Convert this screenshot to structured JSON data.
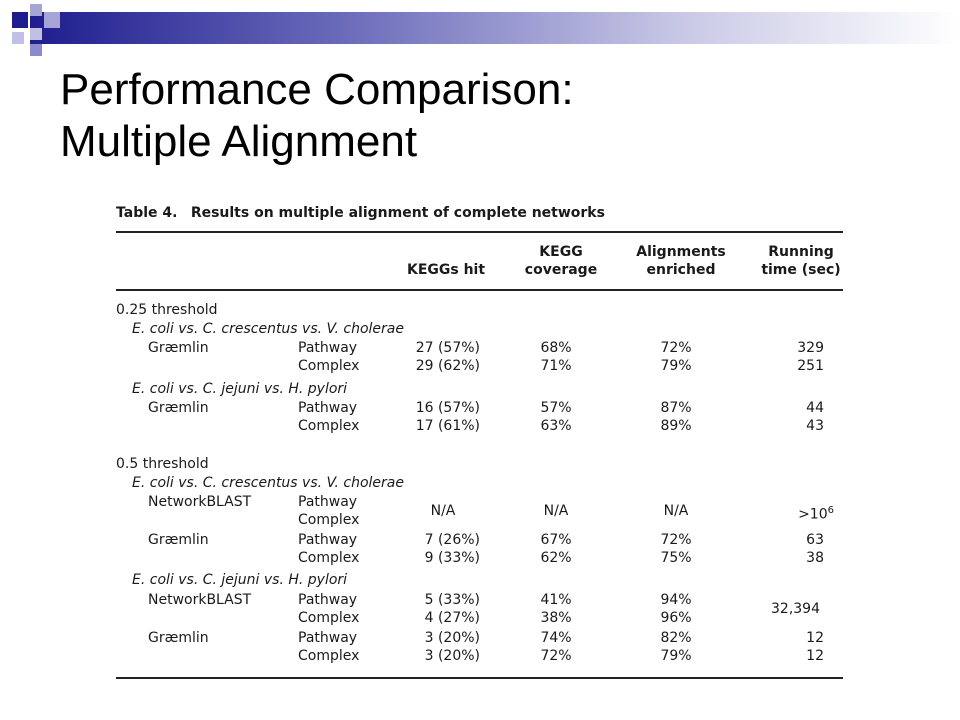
{
  "slide": {
    "title_line1": "Performance Comparison:",
    "title_line2": "Multiple Alignment"
  },
  "table": {
    "caption_label": "Table 4.",
    "caption_text": "Results on multiple alignment of complete networks",
    "headers": {
      "keggs_hit": "KEGGs hit",
      "kegg_coverage_1": "KEGG",
      "kegg_coverage_2": "coverage",
      "alignments_1": "Alignments",
      "alignments_2": "enriched",
      "running_1": "Running",
      "running_2": "time (sec)"
    },
    "sections": [
      {
        "threshold": "0.25 threshold",
        "comparisons": [
          {
            "species": "E. coli vs. C. crescentus vs. V. cholerae",
            "methods": [
              {
                "method": "Græmlin",
                "rows": [
                  {
                    "type": "Pathway",
                    "keggs_hit": "27 (57%)",
                    "coverage": "68%",
                    "enriched": "72%",
                    "time": "329"
                  },
                  {
                    "type": "Complex",
                    "keggs_hit": "29 (62%)",
                    "coverage": "71%",
                    "enriched": "79%",
                    "time": "251"
                  }
                ]
              }
            ]
          },
          {
            "species": "E. coli vs. C. jejuni vs. H. pylori",
            "methods": [
              {
                "method": "Græmlin",
                "rows": [
                  {
                    "type": "Pathway",
                    "keggs_hit": "16 (57%)",
                    "coverage": "57%",
                    "enriched": "87%",
                    "time": "44"
                  },
                  {
                    "type": "Complex",
                    "keggs_hit": "17 (61%)",
                    "coverage": "63%",
                    "enriched": "89%",
                    "time": "43"
                  }
                ]
              }
            ]
          }
        ]
      },
      {
        "threshold": "0.5 threshold",
        "comparisons": [
          {
            "species": "E. coli vs. C. crescentus vs. V. cholerae",
            "methods": [
              {
                "method": "NetworkBLAST",
                "types": [
                  "Pathway",
                  "Complex"
                ],
                "keggs_hit": "N/A",
                "coverage": "N/A",
                "enriched": "N/A",
                "time_base": ">10",
                "time_exp": "6"
              },
              {
                "method": "Græmlin",
                "rows": [
                  {
                    "type": "Pathway",
                    "keggs_hit": "7 (26%)",
                    "coverage": "67%",
                    "enriched": "72%",
                    "time": "63"
                  },
                  {
                    "type": "Complex",
                    "keggs_hit": "9 (33%)",
                    "coverage": "62%",
                    "enriched": "75%",
                    "time": "38"
                  }
                ]
              }
            ]
          },
          {
            "species": "E. coli vs. C. jejuni vs. H. pylori",
            "methods": [
              {
                "method": "NetworkBLAST",
                "rows": [
                  {
                    "type": "Pathway",
                    "keggs_hit": "5 (33%)",
                    "coverage": "41%",
                    "enriched": "94%"
                  },
                  {
                    "type": "Complex",
                    "keggs_hit": "4 (27%)",
                    "coverage": "38%",
                    "enriched": "96%"
                  }
                ],
                "time": "32,394"
              },
              {
                "method": "Græmlin",
                "rows": [
                  {
                    "type": "Pathway",
                    "keggs_hit": "3 (20%)",
                    "coverage": "74%",
                    "enriched": "82%",
                    "time": "12"
                  },
                  {
                    "type": "Complex",
                    "keggs_hit": "3 (20%)",
                    "coverage": "72%",
                    "enriched": "79%",
                    "time": "12"
                  }
                ]
              }
            ]
          }
        ]
      }
    ]
  }
}
